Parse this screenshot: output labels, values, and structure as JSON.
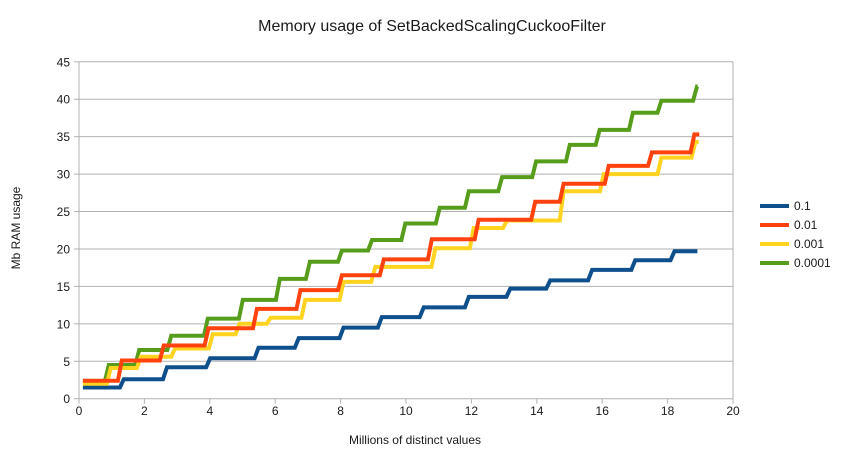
{
  "chart_data": {
    "type": "line",
    "subtype": "step",
    "title": "Memory usage of SetBackedScalingCuckooFilter",
    "xlabel": "Millions of distinct values",
    "ylabel": "Mb RAM usage",
    "xlim": [
      0,
      20
    ],
    "ylim": [
      0,
      45
    ],
    "x_ticks": [
      0,
      2,
      4,
      6,
      8,
      10,
      12,
      14,
      16,
      18,
      20
    ],
    "y_ticks": [
      0,
      5,
      10,
      15,
      20,
      25,
      30,
      35,
      40,
      45
    ],
    "grid": "horizontal",
    "legend_position": "right",
    "style": {
      "grid_color": "#b2b2b2",
      "axis_color": "#b2b2b2",
      "text_color": "#1a1a1a",
      "line_width": 4
    },
    "series": [
      {
        "name": "0.1",
        "color": "#0e4f8c",
        "x_start": 0.12,
        "x_end": 18.91,
        "start_value": 1.5,
        "steps": [
          {
            "x": 1.31,
            "y": 2.6
          },
          {
            "x": 2.63,
            "y": 4.2
          },
          {
            "x": 3.95,
            "y": 5.4
          },
          {
            "x": 5.43,
            "y": 6.8
          },
          {
            "x": 6.66,
            "y": 8.1
          },
          {
            "x": 8.03,
            "y": 9.5
          },
          {
            "x": 9.2,
            "y": 10.9
          },
          {
            "x": 10.48,
            "y": 12.2
          },
          {
            "x": 11.86,
            "y": 13.6
          },
          {
            "x": 13.13,
            "y": 14.7
          },
          {
            "x": 14.35,
            "y": 15.8
          },
          {
            "x": 15.63,
            "y": 17.2
          },
          {
            "x": 16.95,
            "y": 18.5
          },
          {
            "x": 18.15,
            "y": 19.7
          }
        ]
      },
      {
        "name": "0.01",
        "color": "#ff420e",
        "x_start": 0.12,
        "x_end": 18.97,
        "start_value": 2.4,
        "steps": [
          {
            "x": 1.25,
            "y": 5.1
          },
          {
            "x": 2.53,
            "y": 7.1
          },
          {
            "x": 3.9,
            "y": 9.4
          },
          {
            "x": 5.38,
            "y": 12.0
          },
          {
            "x": 6.71,
            "y": 14.5
          },
          {
            "x": 7.98,
            "y": 16.5
          },
          {
            "x": 9.26,
            "y": 18.6
          },
          {
            "x": 10.73,
            "y": 21.3
          },
          {
            "x": 12.16,
            "y": 23.9
          },
          {
            "x": 13.89,
            "y": 26.3
          },
          {
            "x": 14.76,
            "y": 28.7
          },
          {
            "x": 16.14,
            "y": 31.1
          },
          {
            "x": 17.46,
            "y": 32.9
          },
          {
            "x": 18.76,
            "y": 35.3
          }
        ]
      },
      {
        "name": "0.001",
        "color": "#ffd320",
        "x_start": 0.12,
        "x_end": 18.95,
        "start_value": 2.0,
        "steps": [
          {
            "x": 0.91,
            "y": 4.1
          },
          {
            "x": 1.83,
            "y": 5.6
          },
          {
            "x": 2.88,
            "y": 6.7
          },
          {
            "x": 4.03,
            "y": 8.6
          },
          {
            "x": 4.85,
            "y": 10.0
          },
          {
            "x": 5.8,
            "y": 10.8
          },
          {
            "x": 6.86,
            "y": 13.2
          },
          {
            "x": 8.03,
            "y": 15.6
          },
          {
            "x": 9.0,
            "y": 17.6
          },
          {
            "x": 10.84,
            "y": 20.1
          },
          {
            "x": 12.01,
            "y": 22.8
          },
          {
            "x": 13.03,
            "y": 23.8
          },
          {
            "x": 14.76,
            "y": 27.7
          },
          {
            "x": 15.99,
            "y": 30.0
          },
          {
            "x": 17.75,
            "y": 32.2
          },
          {
            "x": 18.79,
            "y": 34.3
          }
        ]
      },
      {
        "name": "0.0001",
        "color": "#579d1c",
        "x_start": 0.12,
        "x_end": 18.92,
        "start_value": 2.3,
        "steps": [
          {
            "x": 0.85,
            "y": 4.5
          },
          {
            "x": 1.78,
            "y": 6.5
          },
          {
            "x": 2.76,
            "y": 8.4
          },
          {
            "x": 3.88,
            "y": 10.7
          },
          {
            "x": 4.95,
            "y": 13.2
          },
          {
            "x": 6.08,
            "y": 16.0
          },
          {
            "x": 7.0,
            "y": 18.3
          },
          {
            "x": 7.98,
            "y": 19.8
          },
          {
            "x": 8.9,
            "y": 21.2
          },
          {
            "x": 9.92,
            "y": 23.4
          },
          {
            "x": 10.97,
            "y": 25.5
          },
          {
            "x": 11.86,
            "y": 27.7
          },
          {
            "x": 12.88,
            "y": 29.6
          },
          {
            "x": 13.92,
            "y": 31.7
          },
          {
            "x": 14.95,
            "y": 33.9
          },
          {
            "x": 15.86,
            "y": 35.9
          },
          {
            "x": 16.88,
            "y": 38.2
          },
          {
            "x": 17.75,
            "y": 39.8
          },
          {
            "x": 18.84,
            "y": 41.7
          }
        ]
      }
    ],
    "legend": [
      "0.1",
      "0.01",
      "0.001",
      "0.0001"
    ]
  }
}
